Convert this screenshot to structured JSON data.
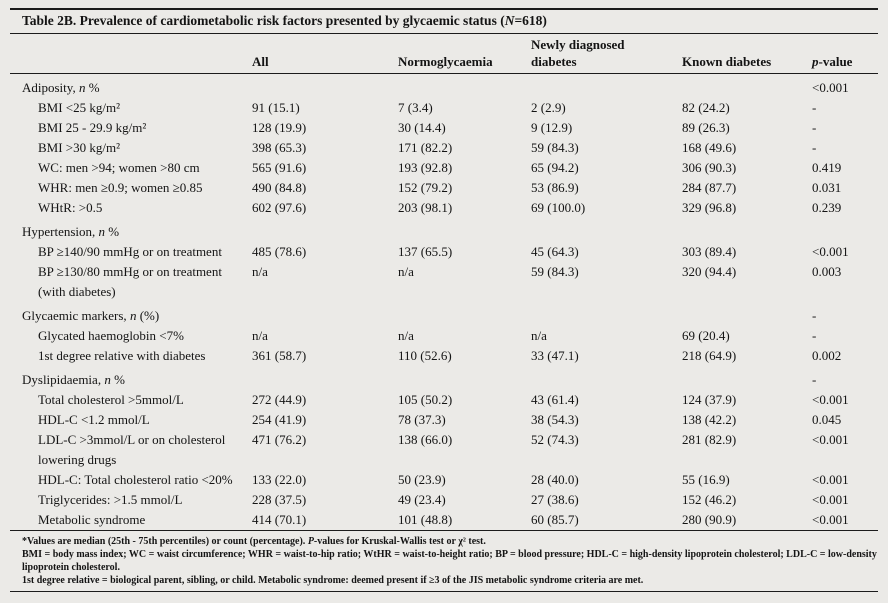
{
  "page": {
    "background_color": "#ebeae7",
    "text_color": "#141414",
    "rule_color": "#1c1c1c"
  },
  "title": {
    "label": "Table 2B.",
    "body": " Prevalence of cardiometabolic risk factors presented by glycaemic status (",
    "n_italic": "N",
    "tail": "=618)"
  },
  "table": {
    "headers": {
      "label_col": "",
      "all": "All",
      "normoglycaemia": "Normoglycaemia",
      "newly_line1": "Newly diagnosed",
      "newly_line2": "diabetes",
      "known": "Known diabetes",
      "p_italic": "p",
      "p_rest": "-value"
    },
    "rows": [
      {
        "category": true,
        "label": [
          [
            "Adiposity, ",
            false
          ],
          [
            "n",
            true
          ],
          [
            " %",
            false
          ]
        ],
        "cells": [
          "",
          "",
          "",
          "",
          "<0.001"
        ]
      },
      {
        "label": "BMI <25 kg/m²",
        "cells": [
          "91 (15.1)",
          "7 (3.4)",
          "2 (2.9)",
          "82 (24.2)",
          "-"
        ]
      },
      {
        "label": "BMI 25 - 29.9 kg/m²",
        "cells": [
          "128 (19.9)",
          "30 (14.4)",
          "9 (12.9)",
          "89 (26.3)",
          "-"
        ]
      },
      {
        "label": "BMI >30 kg/m²",
        "cells": [
          "398 (65.3)",
          "171 (82.2)",
          "59 (84.3)",
          "168 (49.6)",
          "-"
        ]
      },
      {
        "label": "WC: men >94; women >80 cm",
        "cells": [
          "565 (91.6)",
          "193 (92.8)",
          "65 (94.2)",
          "306 (90.3)",
          "0.419"
        ]
      },
      {
        "label": "WHR: men ≥0.9; women ≥0.85",
        "cells": [
          "490 (84.8)",
          "152 (79.2)",
          "53 (86.9)",
          "284 (87.7)",
          "0.031"
        ]
      },
      {
        "label": "WHtR: >0.5",
        "cells": [
          "602 (97.6)",
          "203 (98.1)",
          "69 (100.0)",
          "329 (96.8)",
          "0.239"
        ]
      },
      {
        "category": true,
        "label": [
          [
            "Hypertension, ",
            false
          ],
          [
            "n",
            true
          ],
          [
            " %",
            false
          ]
        ],
        "cells": [
          "",
          "",
          "",
          "",
          ""
        ]
      },
      {
        "label": "BP ≥140/90 mmHg or on treatment",
        "cells": [
          "485 (78.6)",
          "137 (65.5)",
          "45 (64.3)",
          "303 (89.4)",
          "<0.001"
        ]
      },
      {
        "label": "BP ≥130/80 mmHg or on treatment",
        "label2": "(with diabetes)",
        "cells": [
          "n/a",
          "n/a",
          "59 (84.3)",
          "320 (94.4)",
          "0.003"
        ]
      },
      {
        "category": true,
        "label": [
          [
            "Glycaemic markers, ",
            false
          ],
          [
            "n",
            true
          ],
          [
            " (%)",
            false
          ]
        ],
        "cells": [
          "",
          "",
          "",
          "",
          "-"
        ]
      },
      {
        "label": "Glycated haemoglobin <7%",
        "cells": [
          "n/a",
          "n/a",
          "n/a",
          "69 (20.4)",
          "-"
        ]
      },
      {
        "label": "1st degree relative with diabetes",
        "cells": [
          "361 (58.7)",
          "110 (52.6)",
          "33 (47.1)",
          "218 (64.9)",
          "0.002"
        ]
      },
      {
        "category": true,
        "label": [
          [
            "Dyslipidaemia, ",
            false
          ],
          [
            "n",
            true
          ],
          [
            " %",
            false
          ]
        ],
        "cells": [
          "",
          "",
          "",
          "",
          "-"
        ]
      },
      {
        "label": "Total cholesterol >5mmol/L",
        "cells": [
          "272 (44.9)",
          "105 (50.2)",
          "43 (61.4)",
          "124 (37.9)",
          "<0.001"
        ]
      },
      {
        "label": "HDL-C <1.2 mmol/L",
        "cells": [
          "254 (41.9)",
          "78 (37.3)",
          "38 (54.3)",
          "138 (42.2)",
          "0.045"
        ]
      },
      {
        "label": "LDL-C >3mmol/L or on cholesterol",
        "label2": "lowering drugs",
        "cells": [
          "471 (76.2)",
          "138 (66.0)",
          "52 (74.3)",
          "281 (82.9)",
          "<0.001"
        ]
      },
      {
        "label": "HDL-C: Total cholesterol ratio <20%",
        "cells": [
          "133 (22.0)",
          "50 (23.9)",
          "28 (40.0)",
          "55 (16.9)",
          "<0.001"
        ]
      },
      {
        "label": "Triglycerides: >1.5 mmol/L",
        "cells": [
          "228 (37.5)",
          "49 (23.4)",
          "27 (38.6)",
          "152 (46.2)",
          "<0.001"
        ]
      },
      {
        "label": "Metabolic syndrome",
        "cells": [
          "414 (70.1)",
          "101 (48.8)",
          "60 (85.7)",
          "280 (90.9)",
          "<0.001"
        ]
      }
    ]
  },
  "footnotes": [
    {
      "segments": [
        [
          "*Values are median (25th - 75th percentiles) or count (percentage). ",
          false
        ],
        [
          "P",
          true
        ],
        [
          "-values for Kruskal-Wallis test or χ² test.",
          false
        ]
      ]
    },
    {
      "segments": [
        [
          "BMI = body mass index; WC = waist circumference; WHR = waist-to-hip ratio; WtHR = waist-to-height ratio; BP = blood pressure; HDL-C = high-density lipoprotein cholesterol; LDL-C = low-density lipoprotein cholesterol.",
          false
        ]
      ]
    },
    {
      "segments": [
        [
          "1st degree relative = biological parent, sibling, or child. Metabolic syndrome: deemed present if ≥3 of the JIS metabolic syndrome criteria are met.",
          false
        ]
      ]
    }
  ]
}
